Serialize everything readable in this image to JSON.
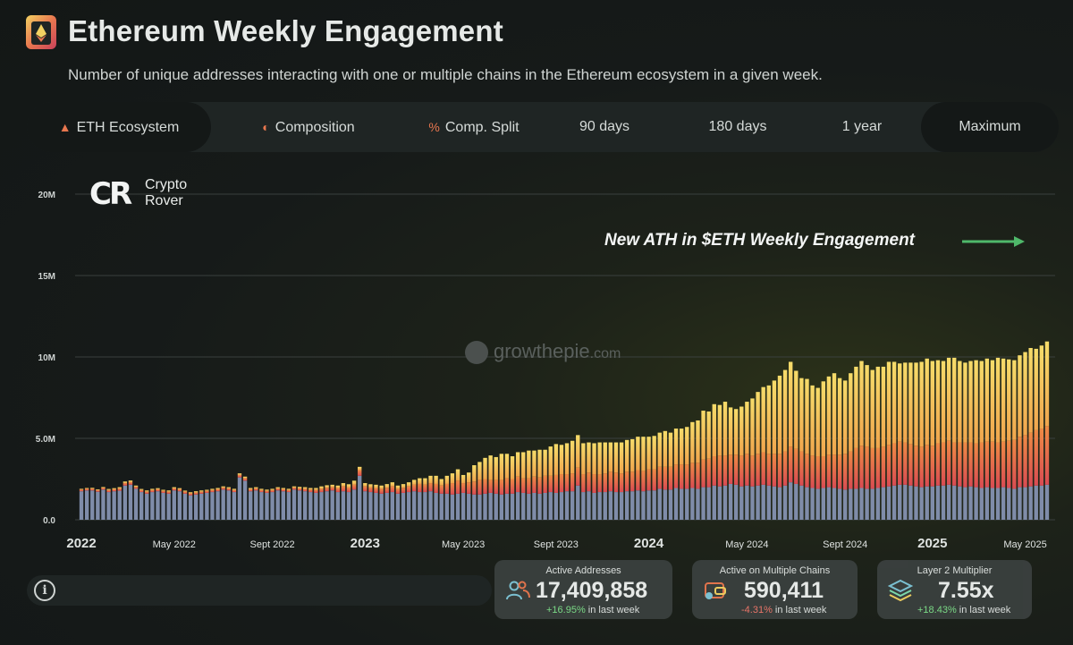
{
  "header": {
    "title": "Ethereum Weekly Engagement",
    "subtitle": "Number of unique addresses interacting with one or multiple chains in the Ethereum ecosystem in a given week."
  },
  "tabs": [
    {
      "label": "ETH Ecosystem",
      "icon": "eth-ecosystem-icon",
      "active": true
    },
    {
      "label": "Composition",
      "icon": "composition-icon",
      "active": false
    },
    {
      "label": "Comp. Split",
      "icon": "percent-icon",
      "active": false
    },
    {
      "label": "90 days",
      "active": false
    },
    {
      "label": "180 days",
      "active": false
    },
    {
      "label": "1 year",
      "active": false
    },
    {
      "label": "Maximum",
      "active": true
    }
  ],
  "watermarks": {
    "cr_mark": "CR",
    "cr_line1": "Crypto",
    "cr_line2": "Rover",
    "site_name": "growthepie",
    "site_tld": ".com"
  },
  "annotation": "New ATH in $ETH Weekly Engagement",
  "kpis": [
    {
      "label": "Active Addresses",
      "value": "17,409,858",
      "change": "+16.95%",
      "direction": "up",
      "suffix": "in last week",
      "icon": "users-icon"
    },
    {
      "label": "Active on Multiple Chains",
      "value": "590,411",
      "change": "-4.31%",
      "direction": "down",
      "suffix": "in last week",
      "icon": "multichain-wallet-icon"
    },
    {
      "label": "Layer 2 Multiplier",
      "value": "7.55x",
      "change": "+18.43%",
      "direction": "up",
      "suffix": "in last week",
      "icon": "layers-icon"
    }
  ],
  "info_icon": "i",
  "colors": {
    "bottom_series": "#7f8ca9",
    "middle_series": "#e25c4e",
    "top_series": "#f2cf56",
    "annotation_arrow": "#4fb86a",
    "positive": "#7ee08a",
    "negative": "#f0786c"
  },
  "chart_data": {
    "type": "bar",
    "stacked": true,
    "y_ticks": [
      "0.0",
      "5.0M",
      "10M",
      "15M",
      "20M"
    ],
    "y_tick_values": [
      0,
      5,
      10,
      15,
      20
    ],
    "ylim": [
      0,
      20
    ],
    "y_unit": "millions of addresses",
    "x_labels": [
      {
        "label": "2022",
        "week": 0,
        "major": true
      },
      {
        "label": "May 2022",
        "week": 17,
        "major": false
      },
      {
        "label": "Sept 2022",
        "week": 35,
        "major": false
      },
      {
        "label": "2023",
        "week": 52,
        "major": true
      },
      {
        "label": "May 2023",
        "week": 70,
        "major": false
      },
      {
        "label": "Sept 2023",
        "week": 87,
        "major": false
      },
      {
        "label": "2024",
        "week": 104,
        "major": true
      },
      {
        "label": "May 2024",
        "week": 122,
        "major": false
      },
      {
        "label": "Sept 2024",
        "week": 140,
        "major": false
      },
      {
        "label": "2025",
        "week": 156,
        "major": true
      },
      {
        "label": "May 2025",
        "week": 173,
        "major": false
      }
    ],
    "grid": true,
    "legend": "none",
    "series": [
      {
        "color_key": "bottom_series",
        "values": [
          1.75,
          1.8,
          1.8,
          1.72,
          1.85,
          1.7,
          1.75,
          1.78,
          2.1,
          2.15,
          1.9,
          1.7,
          1.6,
          1.7,
          1.75,
          1.65,
          1.6,
          1.8,
          1.75,
          1.6,
          1.5,
          1.55,
          1.6,
          1.65,
          1.7,
          1.75,
          1.85,
          1.8,
          1.7,
          2.6,
          2.4,
          1.75,
          1.8,
          1.7,
          1.65,
          1.7,
          1.8,
          1.75,
          1.7,
          1.85,
          1.8,
          1.75,
          1.7,
          1.65,
          1.7,
          1.75,
          1.8,
          1.7,
          1.75,
          1.7,
          1.85,
          2.7,
          1.75,
          1.7,
          1.65,
          1.6,
          1.65,
          1.7,
          1.6,
          1.65,
          1.7,
          1.75,
          1.7,
          1.7,
          1.75,
          1.65,
          1.6,
          1.6,
          1.55,
          1.6,
          1.65,
          1.6,
          1.55,
          1.55,
          1.6,
          1.65,
          1.6,
          1.55,
          1.6,
          1.6,
          1.7,
          1.65,
          1.6,
          1.65,
          1.6,
          1.65,
          1.7,
          1.65,
          1.7,
          1.75,
          1.75,
          2.1,
          1.7,
          1.75,
          1.65,
          1.7,
          1.7,
          1.75,
          1.7,
          1.7,
          1.75,
          1.75,
          1.8,
          1.75,
          1.8,
          1.8,
          1.9,
          1.85,
          1.85,
          1.95,
          1.9,
          1.9,
          1.95,
          1.9,
          2.0,
          2.0,
          2.1,
          2.05,
          2.1,
          2.2,
          2.15,
          2.05,
          2.1,
          2.05,
          2.1,
          2.15,
          2.1,
          2.05,
          2.0,
          2.1,
          2.3,
          2.2,
          2.1,
          2.0,
          1.95,
          1.9,
          1.95,
          2.0,
          1.95,
          1.9,
          1.85,
          1.9,
          1.9,
          1.95,
          1.9,
          1.9,
          1.95,
          2.0,
          2.05,
          2.1,
          2.15,
          2.15,
          2.1,
          2.05,
          2.0,
          2.05,
          2.05,
          2.1,
          2.1,
          2.15,
          2.1,
          2.05,
          2.0,
          2.05,
          2.0,
          1.95,
          2.0,
          1.95,
          1.95,
          2.0,
          1.95,
          1.9,
          2.0,
          2.0,
          2.05,
          2.1,
          2.1,
          2.15
        ]
      },
      {
        "color_key": "middle_series",
        "values": [
          0.1,
          0.1,
          0.1,
          0.1,
          0.1,
          0.12,
          0.12,
          0.14,
          0.15,
          0.16,
          0.12,
          0.12,
          0.12,
          0.12,
          0.12,
          0.12,
          0.12,
          0.12,
          0.12,
          0.12,
          0.12,
          0.12,
          0.12,
          0.12,
          0.12,
          0.12,
          0.12,
          0.12,
          0.12,
          0.15,
          0.15,
          0.12,
          0.12,
          0.12,
          0.12,
          0.12,
          0.12,
          0.12,
          0.12,
          0.12,
          0.12,
          0.15,
          0.15,
          0.18,
          0.2,
          0.22,
          0.2,
          0.25,
          0.3,
          0.28,
          0.3,
          0.35,
          0.3,
          0.28,
          0.3,
          0.3,
          0.32,
          0.35,
          0.3,
          0.32,
          0.35,
          0.4,
          0.5,
          0.45,
          0.5,
          0.55,
          0.5,
          0.6,
          0.7,
          0.8,
          0.6,
          0.7,
          0.8,
          0.9,
          0.9,
          0.8,
          0.85,
          0.9,
          0.95,
          0.9,
          0.95,
          0.9,
          0.95,
          1.0,
          1.0,
          1.05,
          1.0,
          1.1,
          1.1,
          1.05,
          1.1,
          1.1,
          1.1,
          1.15,
          1.15,
          1.1,
          1.15,
          1.2,
          1.2,
          1.15,
          1.2,
          1.2,
          1.25,
          1.25,
          1.3,
          1.3,
          1.35,
          1.4,
          1.4,
          1.45,
          1.5,
          1.5,
          1.55,
          1.6,
          1.7,
          1.75,
          1.8,
          1.9,
          1.85,
          1.8,
          1.85,
          1.9,
          1.95,
          1.9,
          1.95,
          2.0,
          1.95,
          2.0,
          2.05,
          2.1,
          2.2,
          2.15,
          2.1,
          2.05,
          2.0,
          2.0,
          1.95,
          2.0,
          2.05,
          2.1,
          2.2,
          2.3,
          2.5,
          2.6,
          2.6,
          2.5,
          2.45,
          2.5,
          2.55,
          2.6,
          2.65,
          2.6,
          2.55,
          2.5,
          2.5,
          2.55,
          2.5,
          2.6,
          2.65,
          2.7,
          2.65,
          2.7,
          2.75,
          2.7,
          2.7,
          2.8,
          2.8,
          2.85,
          2.8,
          2.8,
          2.9,
          3.0,
          3.1,
          3.2,
          3.3,
          3.4,
          3.5,
          3.6
        ]
      },
      {
        "color_key": "top_series",
        "values": [
          0.05,
          0.05,
          0.06,
          0.05,
          0.06,
          0.07,
          0.07,
          0.08,
          0.1,
          0.1,
          0.08,
          0.07,
          0.08,
          0.08,
          0.07,
          0.07,
          0.08,
          0.08,
          0.07,
          0.07,
          0.07,
          0.08,
          0.08,
          0.07,
          0.08,
          0.08,
          0.08,
          0.08,
          0.08,
          0.1,
          0.1,
          0.08,
          0.08,
          0.08,
          0.08,
          0.08,
          0.08,
          0.08,
          0.08,
          0.08,
          0.1,
          0.1,
          0.1,
          0.12,
          0.15,
          0.15,
          0.15,
          0.15,
          0.2,
          0.2,
          0.25,
          0.2,
          0.2,
          0.2,
          0.2,
          0.2,
          0.22,
          0.25,
          0.2,
          0.22,
          0.25,
          0.3,
          0.35,
          0.4,
          0.45,
          0.5,
          0.4,
          0.5,
          0.6,
          0.7,
          0.5,
          0.6,
          1.0,
          1.1,
          1.3,
          1.5,
          1.4,
          1.6,
          1.5,
          1.4,
          1.5,
          1.6,
          1.7,
          1.6,
          1.7,
          1.6,
          1.8,
          1.9,
          1.8,
          1.9,
          2.0,
          2.0,
          1.9,
          1.85,
          1.9,
          1.95,
          1.9,
          1.8,
          1.85,
          1.9,
          1.95,
          2.0,
          2.05,
          2.1,
          2.0,
          2.05,
          2.1,
          2.2,
          2.1,
          2.2,
          2.2,
          2.3,
          2.5,
          2.6,
          3.0,
          2.9,
          3.2,
          3.1,
          3.3,
          2.9,
          2.8,
          3.0,
          3.2,
          3.5,
          3.8,
          4.0,
          4.2,
          4.5,
          4.8,
          5.0,
          5.2,
          4.8,
          4.5,
          4.6,
          4.3,
          4.2,
          4.6,
          4.8,
          5.0,
          4.7,
          4.5,
          4.8,
          5.0,
          5.2,
          5.0,
          4.8,
          5.0,
          4.9,
          5.1,
          5.0,
          4.8,
          4.9,
          5.0,
          5.1,
          5.2,
          5.3,
          5.2,
          5.1,
          5.0,
          5.1,
          5.2,
          5.0,
          4.9,
          5.0,
          5.1,
          5.0,
          5.1,
          5.0,
          5.2,
          5.1,
          5.0,
          4.9,
          5.0,
          5.1,
          5.2,
          5.0,
          5.1,
          5.2,
          5.0,
          5.1
        ]
      }
    ],
    "totals_override_note": ""
  }
}
